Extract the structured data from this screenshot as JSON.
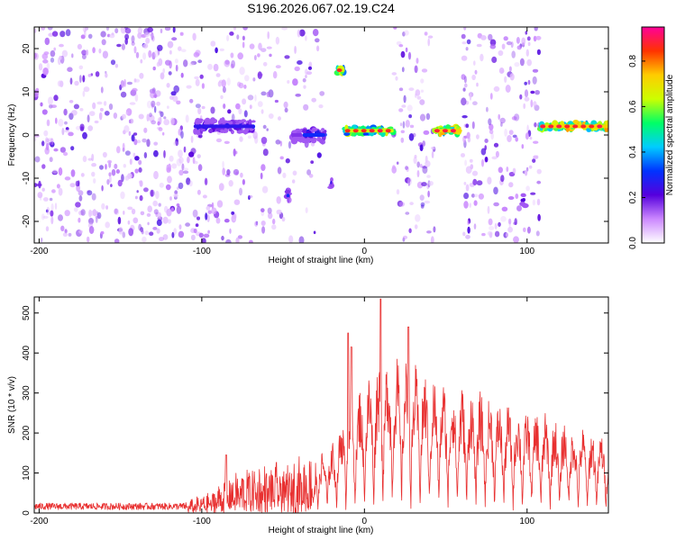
{
  "title": "S196.2026.067.02.19.C24",
  "chart_data": [
    {
      "type": "heatmap",
      "xlabel": "Height of straight line (km)",
      "ylabel": "Frequency (Hz)",
      "xlim": [
        -203,
        150
      ],
      "ylim": [
        -25,
        25
      ],
      "xticks": [
        -200,
        -100,
        0,
        100
      ],
      "yticks": [
        -20,
        -10,
        0,
        10,
        20
      ],
      "colorbar": {
        "label": "Normalized spectral amplitude",
        "range": [
          0.0,
          0.95
        ],
        "ticks": [
          0.0,
          0.2,
          0.4,
          0.6,
          0.8
        ],
        "colors": [
          "#ffffff",
          "#cc88ff",
          "#5500dd",
          "#0033ff",
          "#00ccff",
          "#00ff66",
          "#ccff00",
          "#ffcc00",
          "#ff3300",
          "#ff0099"
        ]
      },
      "noise_regions": [
        {
          "x": [
            -203,
            -110
          ],
          "density": 1.0
        },
        {
          "x": [
            -110,
            -60
          ],
          "density": 0.7
        },
        {
          "x": [
            -60,
            -25
          ],
          "density": 0.45
        },
        {
          "x": [
            18,
            43
          ],
          "density": 0.8
        },
        {
          "x": [
            60,
            108
          ],
          "density": 0.85
        }
      ],
      "features": [
        {
          "x": [
            -105,
            -68
          ],
          "freq": 2,
          "amplitude": 0.3
        },
        {
          "x": [
            -48,
            -46
          ],
          "freq": -14,
          "amplitude": 0.35
        },
        {
          "x": [
            -45,
            -38
          ],
          "freq": 0,
          "amplitude": 0.2
        },
        {
          "x": [
            -38,
            -24
          ],
          "freq": 0,
          "amplitude": 0.35
        },
        {
          "x": [
            -21,
            -20
          ],
          "freq": -11,
          "amplitude": 0.3
        },
        {
          "x": [
            -17,
            -12
          ],
          "freq": 15,
          "amplitude": 0.75
        },
        {
          "x": [
            -12,
            18
          ],
          "freq": 1,
          "amplitude": 0.75
        },
        {
          "x": [
            43,
            60
          ],
          "freq": 1,
          "amplitude": 0.85
        },
        {
          "x": [
            97,
            99
          ],
          "freq": -15,
          "amplitude": 0.25
        },
        {
          "x": [
            108,
            150
          ],
          "freq": 2,
          "amplitude": 0.85
        }
      ]
    },
    {
      "type": "line",
      "xlabel": "Height of straight line (km)",
      "ylabel": "SNR (10 * v/v)",
      "xlim": [
        -203,
        150
      ],
      "ylim": [
        0,
        540
      ],
      "xticks": [
        -200,
        -100,
        0,
        100
      ],
      "yticks": [
        0,
        100,
        200,
        300,
        400,
        500
      ],
      "series": [
        {
          "name": "SNR",
          "color": "#e83030",
          "envelope": {
            "x": [
              -203,
              -110,
              -95,
              -85,
              -70,
              -50,
              -30,
              -20,
              -10,
              0,
              10,
              20,
              35,
              50,
              70,
              90,
              110,
              130,
              150
            ],
            "y": [
              25,
              25,
              45,
              80,
              100,
              110,
              130,
              160,
              260,
              300,
              370,
              360,
              330,
              300,
              280,
              250,
              230,
              200,
              180
            ]
          },
          "peaks": [
            {
              "x": -85,
              "y": 145
            },
            {
              "x": -10,
              "y": 450
            },
            {
              "x": -8,
              "y": 415
            },
            {
              "x": 10,
              "y": 535
            },
            {
              "x": 27,
              "y": 465
            }
          ]
        }
      ]
    }
  ]
}
